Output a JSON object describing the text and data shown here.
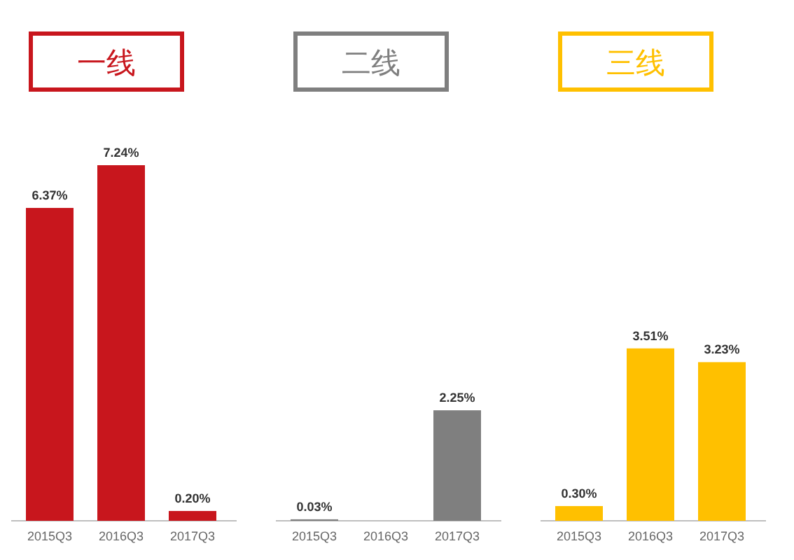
{
  "chart_data": [
    {
      "type": "bar",
      "title": "一线",
      "categories": [
        "2015Q3",
        "2016Q3",
        "2017Q3"
      ],
      "values": [
        6.37,
        7.24,
        0.2
      ],
      "value_labels": [
        "6.37%",
        "7.24%",
        "0.20%"
      ],
      "color": "#c8161d"
    },
    {
      "type": "bar",
      "title": "二线",
      "categories": [
        "2015Q3",
        "2016Q3",
        "2017Q3"
      ],
      "values": [
        0.03,
        null,
        2.25
      ],
      "value_labels": [
        "0.03%",
        null,
        "2.25%"
      ],
      "color": "#7f7f7f"
    },
    {
      "type": "bar",
      "title": "三线",
      "categories": [
        "2015Q3",
        "2016Q3",
        "2017Q3"
      ],
      "values": [
        0.3,
        3.51,
        3.23
      ],
      "value_labels": [
        "0.30%",
        "3.51%",
        "3.23%"
      ],
      "color": "#ffc000"
    }
  ]
}
